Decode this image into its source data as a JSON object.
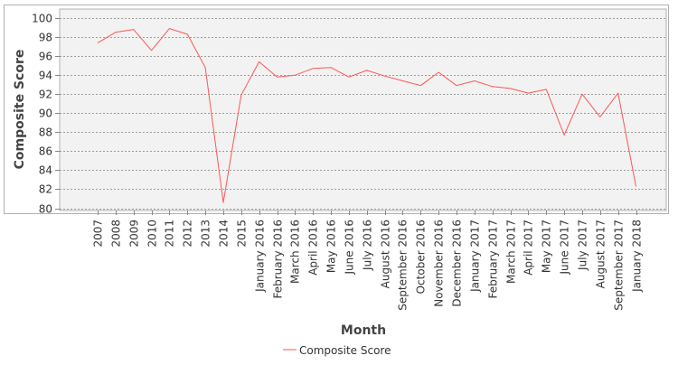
{
  "chart_data": {
    "type": "line",
    "xlabel": "Month",
    "ylabel": "Composite Score",
    "ylim": [
      80,
      100
    ],
    "yticks": [
      80,
      82,
      84,
      86,
      88,
      90,
      92,
      94,
      96,
      98,
      100
    ],
    "grid": true,
    "legend_position": "bottom-center",
    "line_color": "#ff5555",
    "plot_bg": "#f2f2f2",
    "grid_color": "#808080",
    "categories": [
      "2007",
      "2008",
      "2009",
      "2010",
      "2011",
      "2012",
      "2013",
      "2014",
      "2015",
      "January 2016",
      "February 2016",
      "March 2016",
      "April 2016",
      "May 2016",
      "June 2016",
      "July 2016",
      "August 2016",
      "September 2016",
      "October 2016",
      "November 2016",
      "December 2016",
      "January 2017",
      "February 2017",
      "March 2017",
      "April 2017",
      "May 2017",
      "June 2017",
      "July 2017",
      "August 2017",
      "September 2017",
      "January 2018"
    ],
    "series": [
      {
        "name": "Composite Score",
        "values": [
          97.4,
          98.5,
          98.8,
          96.6,
          98.9,
          98.3,
          94.8,
          80.6,
          91.9,
          95.4,
          93.8,
          94.0,
          94.7,
          94.8,
          93.8,
          94.5,
          93.9,
          93.4,
          92.9,
          94.3,
          92.9,
          93.4,
          92.8,
          92.6,
          92.1,
          92.5,
          87.7,
          92.0,
          89.6,
          92.1,
          82.3
        ]
      }
    ]
  }
}
